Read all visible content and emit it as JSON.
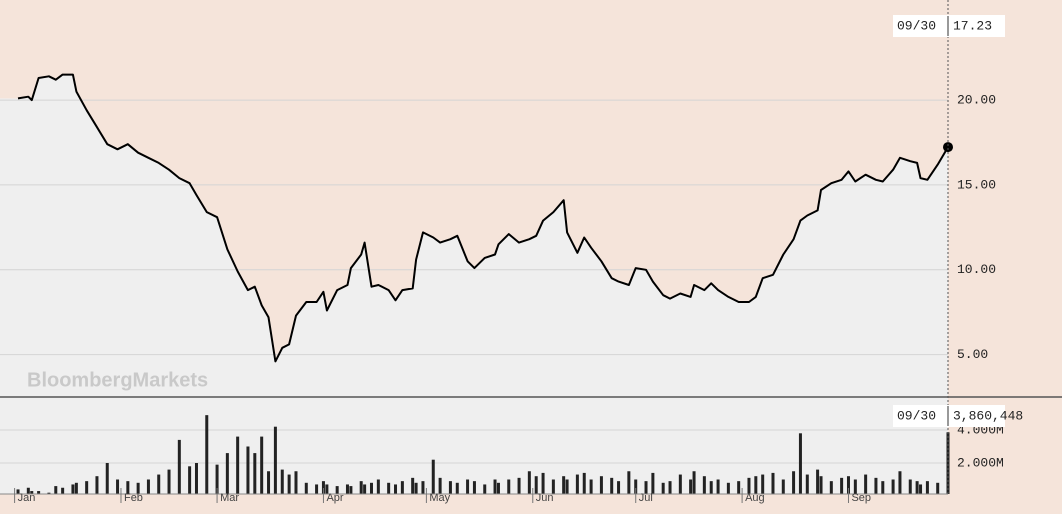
{
  "chart_data": [
    {
      "type": "line",
      "watermark": "BloombergMarkets",
      "x": [
        "01/02",
        "01/05",
        "01/06",
        "01/08",
        "01/11",
        "01/13",
        "01/15",
        "01/18",
        "01/19",
        "01/22",
        "01/25",
        "01/28",
        "01/31",
        "02/03",
        "02/06",
        "02/09",
        "02/12",
        "02/15",
        "02/18",
        "02/21",
        "02/23",
        "02/26",
        "03/01",
        "03/04",
        "03/07",
        "03/10",
        "03/12",
        "03/14",
        "03/16",
        "03/18",
        "03/20",
        "03/22",
        "03/24",
        "03/27",
        "03/30",
        "04/01",
        "04/02",
        "04/05",
        "04/08",
        "04/09",
        "04/12",
        "04/13",
        "04/15",
        "04/17",
        "04/20",
        "04/22",
        "04/24",
        "04/27",
        "04/28",
        "04/30",
        "05/03",
        "05/05",
        "05/08",
        "05/10",
        "05/13",
        "05/15",
        "05/18",
        "05/21",
        "05/22",
        "05/25",
        "05/28",
        "05/31",
        "06/02",
        "06/04",
        "06/07",
        "06/10",
        "06/11",
        "06/14",
        "06/16",
        "06/18",
        "06/21",
        "06/24",
        "06/26",
        "06/29",
        "07/01",
        "07/04",
        "07/06",
        "07/09",
        "07/11",
        "07/14",
        "07/17",
        "07/18",
        "07/21",
        "07/23",
        "07/25",
        "07/28",
        "07/31",
        "08/03",
        "08/05",
        "08/07",
        "08/10",
        "08/13",
        "08/16",
        "08/18",
        "08/20",
        "08/23",
        "08/24",
        "08/27",
        "08/30",
        "09/01",
        "09/03",
        "09/06",
        "09/09",
        "09/11",
        "09/14",
        "09/16",
        "09/19",
        "09/21",
        "09/22",
        "09/24",
        "09/27",
        "09/30"
      ],
      "values": [
        20.1,
        20.2,
        20.0,
        21.3,
        21.4,
        21.2,
        21.5,
        21.5,
        20.5,
        19.4,
        18.4,
        17.4,
        17.1,
        17.4,
        16.9,
        16.6,
        16.3,
        15.9,
        15.4,
        15.1,
        14.4,
        13.4,
        13.1,
        11.2,
        9.9,
        8.8,
        9.0,
        7.9,
        7.2,
        4.6,
        5.4,
        5.6,
        7.3,
        8.1,
        8.1,
        8.7,
        7.6,
        8.8,
        9.1,
        10.1,
        10.9,
        11.6,
        9.0,
        9.1,
        8.8,
        8.2,
        8.8,
        8.9,
        10.6,
        12.2,
        11.9,
        11.6,
        11.8,
        12.0,
        10.5,
        10.1,
        10.7,
        10.9,
        11.5,
        12.1,
        11.6,
        11.8,
        12.0,
        12.9,
        13.4,
        14.1,
        12.2,
        11.0,
        11.9,
        11.3,
        10.5,
        9.5,
        9.3,
        9.1,
        10.1,
        10.0,
        9.3,
        8.5,
        8.3,
        8.6,
        8.4,
        9.1,
        8.8,
        9.2,
        8.8,
        8.4,
        8.1,
        8.1,
        8.4,
        9.5,
        9.7,
        10.9,
        11.8,
        12.9,
        13.2,
        13.5,
        14.7,
        15.1,
        15.3,
        15.8,
        15.2,
        15.6,
        15.3,
        15.2,
        15.9,
        16.6,
        16.4,
        16.3,
        15.4,
        15.3,
        16.2,
        17.23
      ],
      "color": "#000000",
      "area_color": "#efefef",
      "xlim": [
        "01/01",
        "09/30"
      ],
      "ylim": [
        2.5,
        25.9
      ],
      "yticks": [
        {
          "value": 5,
          "label": "5.00"
        },
        {
          "value": 10,
          "label": "10.00"
        },
        {
          "value": 15,
          "label": "15.00"
        },
        {
          "value": 20,
          "label": "20.00"
        }
      ],
      "grid": true
    },
    {
      "type": "bar",
      "x": [
        "01/02",
        "01/05",
        "01/06",
        "01/08",
        "01/11",
        "01/13",
        "01/15",
        "01/18",
        "01/19",
        "01/22",
        "01/25",
        "01/28",
        "01/31",
        "02/03",
        "02/06",
        "02/09",
        "02/12",
        "02/15",
        "02/18",
        "02/21",
        "02/23",
        "02/26",
        "03/01",
        "03/04",
        "03/07",
        "03/10",
        "03/12",
        "03/14",
        "03/16",
        "03/18",
        "03/20",
        "03/22",
        "03/24",
        "03/27",
        "03/30",
        "04/01",
        "04/02",
        "04/05",
        "04/08",
        "04/09",
        "04/12",
        "04/13",
        "04/15",
        "04/17",
        "04/20",
        "04/22",
        "04/24",
        "04/27",
        "04/28",
        "04/30",
        "05/03",
        "05/05",
        "05/08",
        "05/10",
        "05/13",
        "05/15",
        "05/18",
        "05/21",
        "05/22",
        "05/25",
        "05/28",
        "05/31",
        "06/02",
        "06/04",
        "06/07",
        "06/10",
        "06/11",
        "06/14",
        "06/16",
        "06/18",
        "06/21",
        "06/24",
        "06/26",
        "06/29",
        "07/01",
        "07/04",
        "07/06",
        "07/09",
        "07/11",
        "07/14",
        "07/17",
        "07/18",
        "07/21",
        "07/23",
        "07/25",
        "07/28",
        "07/31",
        "08/03",
        "08/05",
        "08/07",
        "08/10",
        "08/13",
        "08/16",
        "08/18",
        "08/20",
        "08/23",
        "08/24",
        "08/27",
        "08/30",
        "09/01",
        "09/03",
        "09/06",
        "09/09",
        "09/11",
        "09/14",
        "09/16",
        "09/19",
        "09/21",
        "09/22",
        "09/24",
        "09/27",
        "09/30"
      ],
      "values": [
        400000,
        500000,
        300000,
        300000,
        200000,
        600000,
        500000,
        700000,
        800000,
        900000,
        1200000,
        2000000,
        1000000,
        900000,
        800000,
        1000000,
        1300000,
        1600000,
        3400000,
        1800000,
        2000000,
        4900000,
        1900000,
        2600000,
        3600000,
        3000000,
        2600000,
        3600000,
        1500000,
        4200000,
        1600000,
        1300000,
        1500000,
        800000,
        700000,
        900000,
        700000,
        600000,
        700000,
        600000,
        900000,
        700000,
        800000,
        1000000,
        800000,
        700000,
        900000,
        1100000,
        800000,
        900000,
        2200000,
        1100000,
        900000,
        800000,
        1000000,
        900000,
        700000,
        1000000,
        800000,
        1000000,
        1100000,
        1500000,
        1200000,
        1400000,
        1000000,
        1200000,
        1000000,
        1300000,
        1400000,
        1000000,
        1200000,
        1100000,
        900000,
        1500000,
        1000000,
        900000,
        1400000,
        800000,
        900000,
        1300000,
        1000000,
        1500000,
        1200000,
        900000,
        1000000,
        800000,
        900000,
        1100000,
        1200000,
        1300000,
        1400000,
        1000000,
        1500000,
        3800000,
        1300000,
        1600000,
        1200000,
        900000,
        1100000,
        1200000,
        1000000,
        1300000,
        1100000,
        900000,
        1000000,
        1500000,
        1000000,
        900000,
        700000,
        900000,
        800000,
        3860448
      ],
      "value_labels": [
        null,
        null,
        null,
        null,
        null,
        null,
        null,
        null,
        null,
        null,
        null,
        null,
        null,
        null,
        null,
        null,
        null,
        null,
        null,
        null,
        null,
        null,
        null,
        null,
        null,
        null,
        null,
        null,
        null,
        null,
        null,
        null,
        null,
        null,
        null,
        null,
        null,
        null,
        null,
        null,
        null,
        null,
        null,
        null,
        null,
        null,
        null,
        null,
        null,
        null,
        null,
        null,
        null,
        null,
        null,
        null,
        null,
        null,
        null,
        null,
        null,
        null,
        null,
        null,
        null,
        null,
        null,
        null,
        null,
        null,
        null,
        null,
        null,
        null,
        null,
        null,
        null,
        null,
        null,
        null,
        null,
        null,
        null,
        null,
        null,
        null,
        null,
        null,
        null,
        null,
        null,
        null,
        null,
        null,
        null,
        null,
        null,
        null,
        null,
        null,
        null,
        null,
        null,
        null,
        null,
        null,
        null,
        null,
        null,
        null,
        null,
        "3,860,448"
      ],
      "color": "#222222",
      "xlim": [
        "01/01",
        "09/30"
      ],
      "xticks": [
        {
          "value": "01/01",
          "label": "Jan"
        },
        {
          "value": "02/01",
          "label": "Feb"
        },
        {
          "value": "03/01",
          "label": "Mar"
        },
        {
          "value": "04/01",
          "label": "Apr"
        },
        {
          "value": "05/01",
          "label": "May"
        },
        {
          "value": "06/01",
          "label": "Jun"
        },
        {
          "value": "07/01",
          "label": "Jul"
        },
        {
          "value": "08/01",
          "label": "Aug"
        },
        {
          "value": "09/01",
          "label": "Sep"
        }
      ],
      "ylim": [
        0,
        6000000
      ],
      "yticks": [
        {
          "value": 2000000,
          "label": "2.000M"
        },
        {
          "value": 4000000,
          "label": "4.000M"
        }
      ],
      "grid": true
    }
  ]
}
